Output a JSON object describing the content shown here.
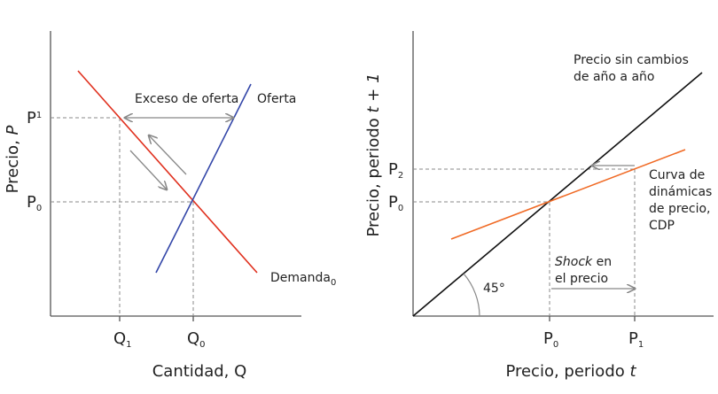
{
  "left": {
    "y_axis_label": {
      "text": "Precio, ",
      "var": "P"
    },
    "x_axis_label": "Cantidad, Q",
    "p_ticks": [
      {
        "main": "P",
        "sub": "1"
      },
      {
        "main": "P",
        "sub": "0"
      }
    ],
    "q_ticks": [
      {
        "main": "Q",
        "sub": "1"
      },
      {
        "main": "Q",
        "sub": "0"
      }
    ],
    "supply_label": "Oferta",
    "demand_label": {
      "main": "Demanda",
      "sub": "0"
    },
    "annotation": "Exceso de oferta"
  },
  "right": {
    "y_axis_label": {
      "text": "Precio, periodo ",
      "var": "t + 1"
    },
    "x_axis_label": {
      "text": "Precio, periodo ",
      "var": "t"
    },
    "y_ticks": [
      {
        "main": "P",
        "sub": "2"
      },
      {
        "main": "P",
        "sub": "0"
      }
    ],
    "x_ticks": [
      {
        "main": "P",
        "sub": "0"
      },
      {
        "main": "P",
        "sub": "1"
      }
    ],
    "line45_label": [
      "Precio sin cambios",
      "de año a año"
    ],
    "angle_label": "45°",
    "cdp_label": [
      "Curva de",
      "dinámicas",
      "de precio,",
      "CDP"
    ],
    "shock_label": {
      "italic": "Shock",
      "text": " en",
      "line2": "el precio"
    }
  }
}
